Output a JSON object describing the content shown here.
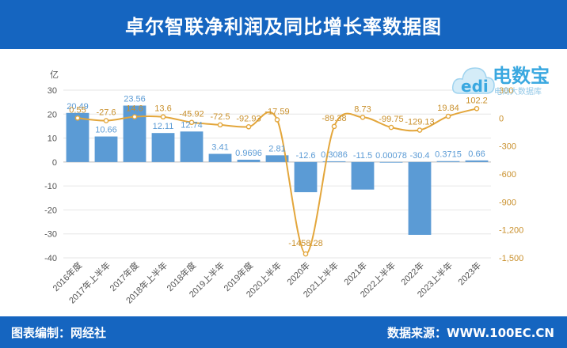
{
  "header": {
    "title": "卓尔智联净利润及同比增长率数据图"
  },
  "footer": {
    "left": "图表编制：网经社",
    "right": "数据来源：WWW.100EC.CN"
  },
  "logo": {
    "brand": "电数宝",
    "sub": "电商大数据库"
  },
  "colors": {
    "header_bg": "#1565c0",
    "bar": "#5b9bd5",
    "line": "#e3a63b",
    "bar_label": "#5b9bd5",
    "line_label": "#c9902c"
  },
  "chart_data": {
    "type": "bar",
    "title": "",
    "y_left_unit": "亿",
    "categories": [
      "2016年度",
      "2017年上半年",
      "2017年度",
      "2018年上半年",
      "2018年度",
      "2019上半年",
      "2019年度",
      "2020上半年",
      "2020年",
      "2021上半年",
      "2021年",
      "2022上半年",
      "2022年",
      "2023上半年",
      "2023年"
    ],
    "series": [
      {
        "axis": "left",
        "type": "bar",
        "values": [
          20.49,
          10.66,
          23.56,
          12.11,
          12.74,
          3.41,
          0.9696,
          2.81,
          -12.6,
          0.3086,
          -11.5,
          0.00078,
          -30.4,
          0.3715,
          0.66
        ],
        "labels": [
          "20.49",
          "10.66",
          "23.56",
          "12.11",
          "12.74",
          "3.41",
          "0.9696",
          "2.81",
          "-12.6",
          "0.3086",
          "-11.5",
          "0.00078",
          "-30.4",
          "0.3715",
          "0.66"
        ]
      },
      {
        "axis": "right",
        "type": "line",
        "values": [
          0.55,
          -27.6,
          14.6,
          13.6,
          -45.92,
          -72.5,
          -92.93,
          -17.59,
          -1458.28,
          -89.38,
          8.73,
          -99.75,
          -129.13,
          19.84,
          102.2
        ],
        "labels": [
          "0.55",
          "-27.6",
          "14.6",
          "13.6",
          "-45.92",
          "-72.5",
          "-92.93",
          "-17.59",
          "-1458.28",
          "-89.38",
          "8.73",
          "-99.75",
          "-129.13",
          "19.84",
          "102.2"
        ]
      }
    ],
    "y_left": {
      "min": -40,
      "max": 30,
      "ticks": [
        "30",
        "20",
        "10",
        "0",
        "-10",
        "-20",
        "-30",
        "-40"
      ]
    },
    "y_right": {
      "min": -1500,
      "max": 300,
      "ticks": [
        "300",
        "0",
        "-300",
        "-600",
        "-900",
        "-1,200",
        "-1,500"
      ]
    },
    "grid": true,
    "legend": "none"
  }
}
